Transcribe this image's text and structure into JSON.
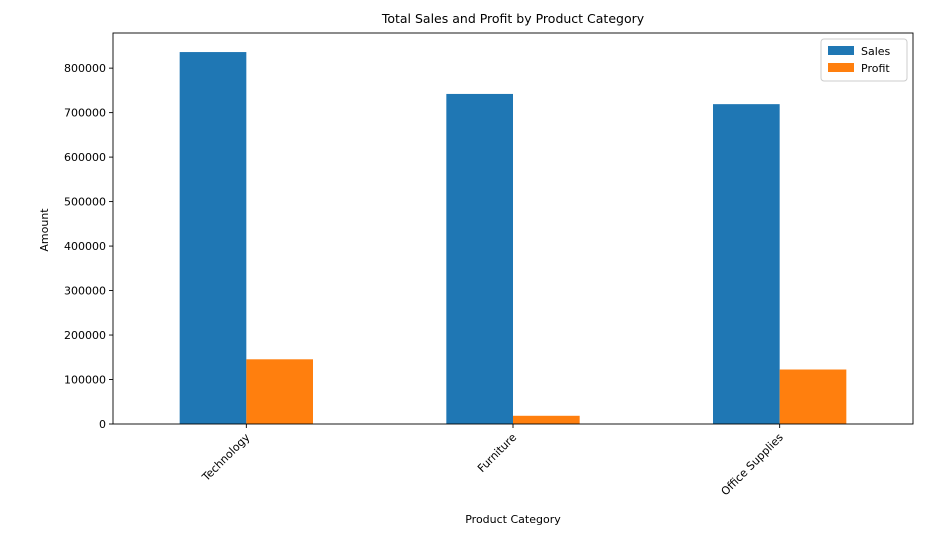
{
  "chart_data": {
    "type": "bar",
    "title": "Total Sales and Profit by Product Category",
    "xlabel": "Product Category",
    "ylabel": "Amount",
    "categories": [
      "Technology",
      "Furniture",
      "Office Supplies"
    ],
    "series": [
      {
        "name": "Sales",
        "color": "#1f77b4",
        "values": [
          836154,
          741999,
          719047
        ]
      },
      {
        "name": "Profit",
        "color": "#ff7f0e",
        "values": [
          145455,
          18451,
          122491
        ]
      }
    ],
    "yticks": [
      0,
      100000,
      200000,
      300000,
      400000,
      500000,
      600000,
      700000,
      800000
    ],
    "ylim": [
      0,
      879000
    ],
    "grid": false,
    "legend": "top-right",
    "x_tick_rotation": 45
  }
}
